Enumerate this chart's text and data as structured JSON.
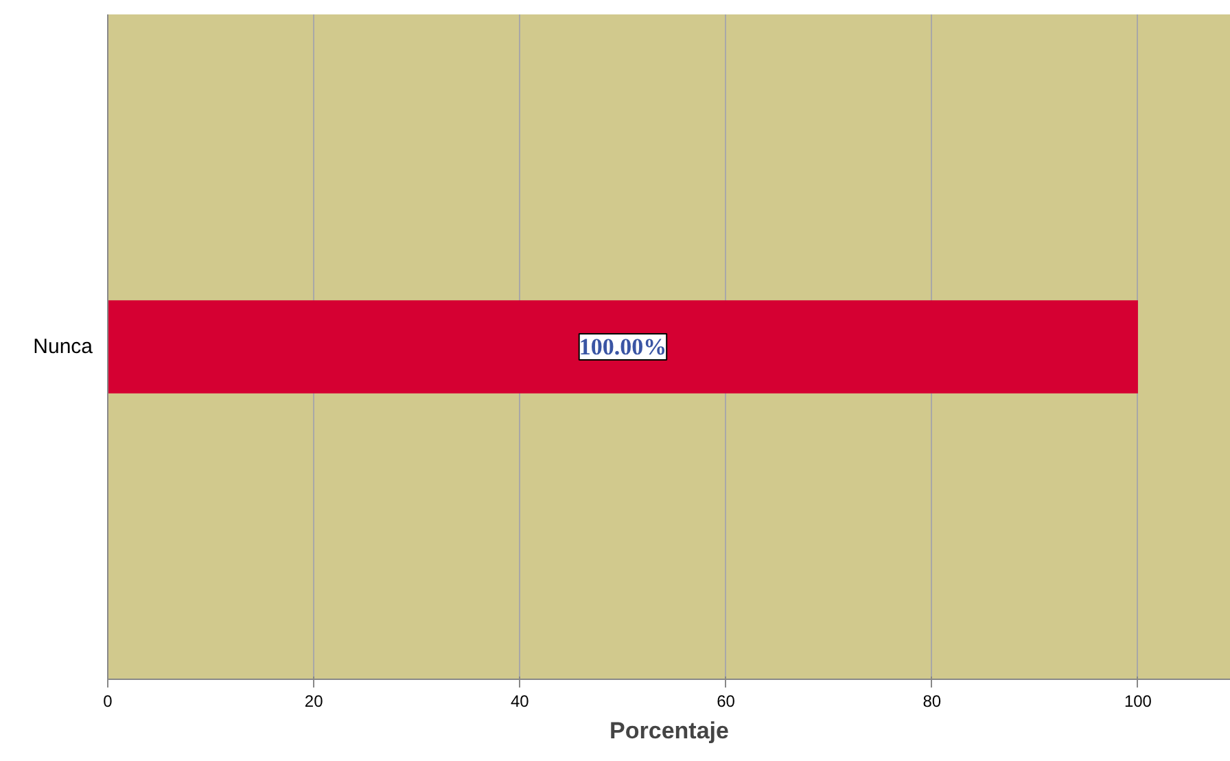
{
  "chart_data": {
    "type": "bar",
    "orientation": "horizontal",
    "xlabel": "Porcentaje",
    "categories": [
      "Nunca"
    ],
    "values": [
      100
    ],
    "value_labels": [
      "100.00%"
    ],
    "color": "#d50032",
    "xlim": [
      0,
      109
    ],
    "xticks": [
      0,
      20,
      40,
      60,
      80,
      100
    ],
    "grid": "x"
  }
}
